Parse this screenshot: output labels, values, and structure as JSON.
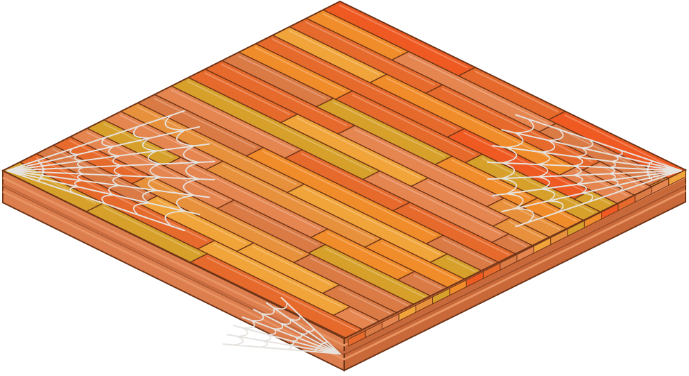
{
  "asset": {
    "kind": "isometric-floor-tile",
    "material": "wooden-planks",
    "decorations": [
      "spider-web-icon",
      "spider-web-icon",
      "spider-web-icon"
    ]
  },
  "colors": {
    "background": "#ffffff",
    "outline": "#6e3418",
    "plank_palette": [
      "#f0a43a",
      "#e66a2c",
      "#d6a02a",
      "#e58550",
      "#ee5a22",
      "#e8913c",
      "#da7a45",
      "#f08c2a"
    ],
    "side_left": "#dd7e4e",
    "side_right": "#c96838",
    "band_light": "#e89464",
    "band_dark": "#c66a3e",
    "web": "#e6e3df"
  }
}
